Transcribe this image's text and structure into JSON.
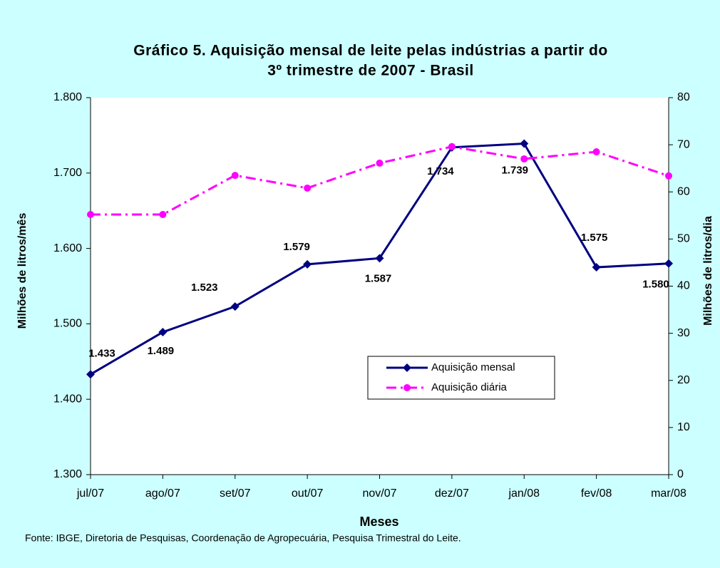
{
  "chart_data": {
    "type": "line",
    "title": [
      "Gráfico 5. Aquisição mensal de leite pelas indústrias a partir do",
      "3º trimestre de 2007 - Brasil"
    ],
    "x_label": "Meses",
    "y_label": "Milhões de litros/mês",
    "y2_label": "Milhões de litros/dia",
    "source": "Fonte: IBGE, Diretoria de Pesquisas, Coordenação de Agropecuária, Pesquisa Trimestral do Leite.",
    "categories": [
      "jul/07",
      "ago/07",
      "set/07",
      "out/07",
      "nov/07",
      "dez/07",
      "jan/08",
      "fev/08",
      "mar/08"
    ],
    "series": [
      {
        "name": "Aquisição mensal",
        "color": "#000080",
        "marker": "diamond",
        "dash": "solid",
        "values": [
          1433,
          1489,
          1523,
          1579,
          1587,
          1734,
          1739,
          1575,
          1580
        ],
        "value_labels": [
          "1.433",
          "1.489",
          "1.523",
          "1.579",
          "1.587",
          "1.734",
          "1.739",
          "1.575",
          "1.580"
        ]
      },
      {
        "name": "Aquisição diária",
        "color": "#ff00ff",
        "marker": "circle",
        "dash": "dashdot",
        "axis": "y2",
        "values": [
          55.2,
          55.2,
          63.5,
          60.8,
          66.1,
          69.6,
          67.0,
          68.5,
          63.4
        ]
      }
    ],
    "ylim": [
      1300,
      1800
    ],
    "yticks": [
      {
        "value": 1300,
        "label": "1.300"
      },
      {
        "value": 1400,
        "label": "1.400"
      },
      {
        "value": 1500,
        "label": "1.500"
      },
      {
        "value": 1600,
        "label": "1.600"
      },
      {
        "value": 1700,
        "label": "1.700"
      },
      {
        "value": 1800,
        "label": "1.800"
      }
    ],
    "y2lim": [
      0,
      80
    ],
    "y2ticks": [
      0,
      10,
      20,
      30,
      40,
      50,
      60,
      70,
      80
    ],
    "grid": false
  }
}
